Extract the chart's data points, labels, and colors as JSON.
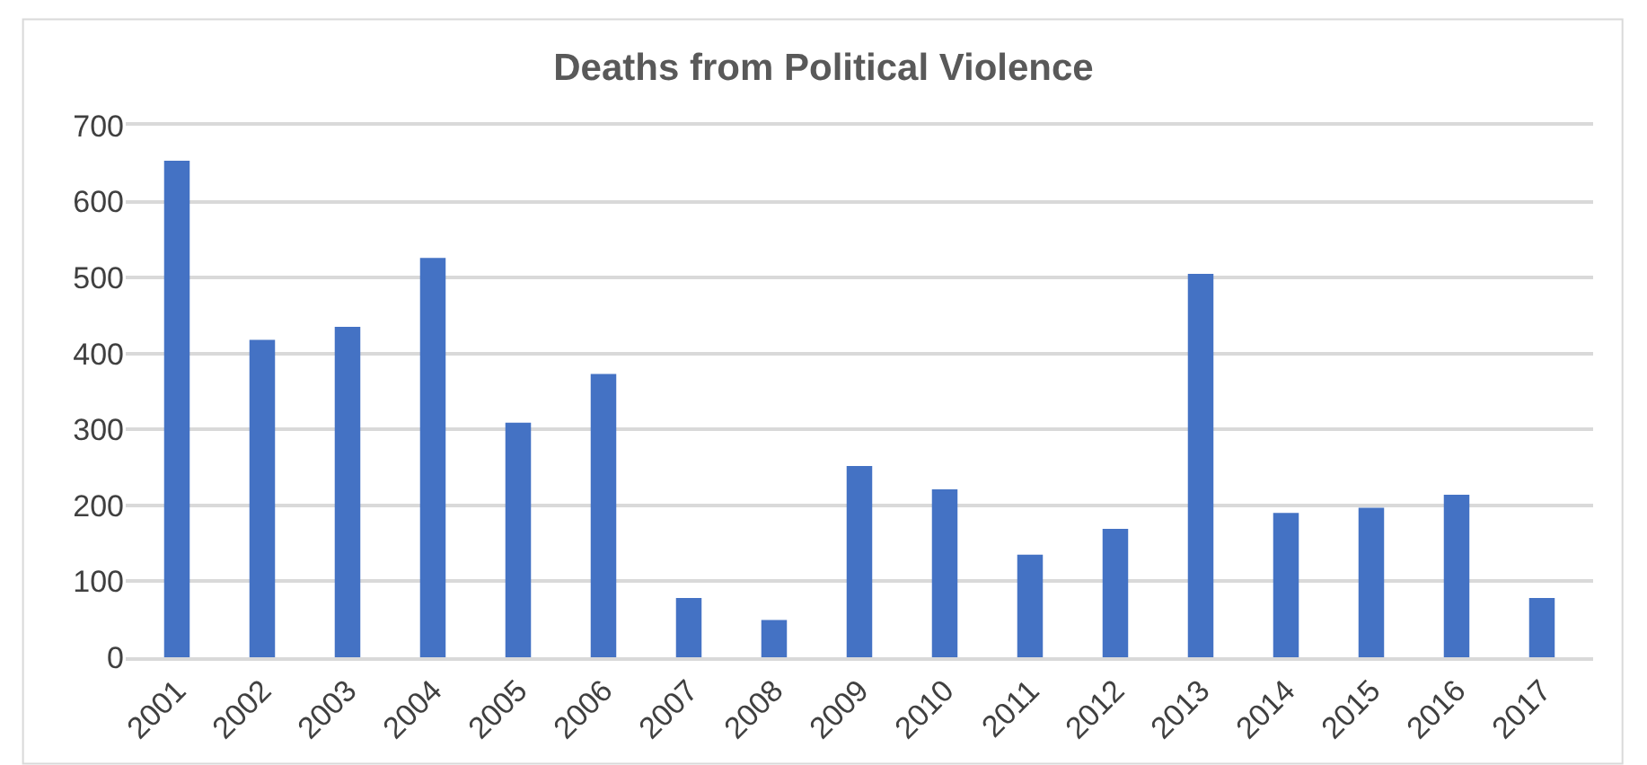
{
  "chart_data": {
    "type": "bar",
    "title": "Deaths from Political Violence",
    "categories": [
      "2001",
      "2002",
      "2003",
      "2004",
      "2005",
      "2006",
      "2007",
      "2008",
      "2009",
      "2010",
      "2011",
      "2012",
      "2013",
      "2014",
      "2015",
      "2016",
      "2017"
    ],
    "values": [
      654,
      418,
      435,
      526,
      309,
      373,
      78,
      49,
      252,
      221,
      135,
      169,
      505,
      190,
      197,
      214,
      78
    ],
    "color": "#4472c4",
    "ylim": [
      0,
      700
    ],
    "yticks": [
      0,
      100,
      200,
      300,
      400,
      500,
      600,
      700
    ],
    "grid": "y"
  }
}
